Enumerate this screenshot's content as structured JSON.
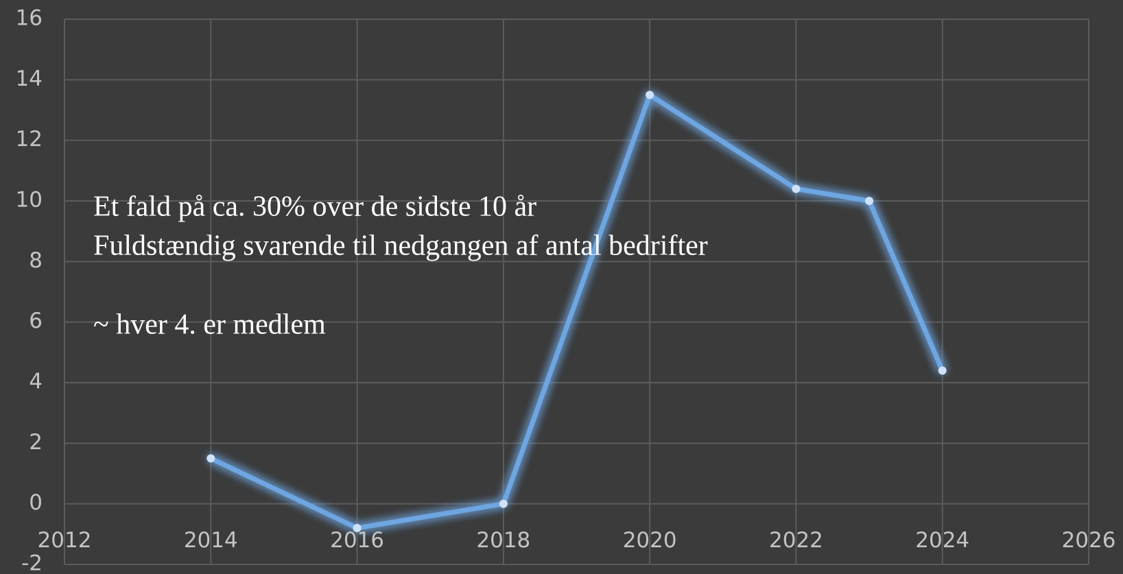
{
  "chart_data": {
    "type": "line",
    "annotations": [
      "Et fald på ca. 30% over de sidste 10 år",
      "Fuldstændig svarende til nedgangen af antal bedrifter",
      "~ hver 4. er medlem"
    ],
    "x": [
      2014,
      2016,
      2018,
      2020,
      2022,
      2023,
      2024
    ],
    "series": [
      {
        "color": "#6ea6e2",
        "values": [
          1.5,
          -0.8,
          0,
          13.5,
          10.4,
          10,
          4.4
        ]
      }
    ],
    "xlim": [
      2012,
      2026
    ],
    "xticks": [
      2012,
      2014,
      2016,
      2018,
      2020,
      2022,
      2024,
      2026
    ],
    "ylim": [
      -2,
      16
    ],
    "yticks": [
      -2,
      0,
      2,
      4,
      6,
      8,
      10,
      12,
      14,
      16
    ],
    "grid": true
  }
}
